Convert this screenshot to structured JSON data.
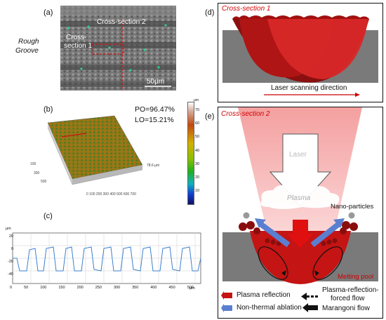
{
  "panel_a": {
    "label": "(a)",
    "side_label_1": "Rough",
    "side_label_2": "Groove",
    "cross_section_2": "Cross-section 2",
    "cross_section_1_line1": "Cross-",
    "cross_section_1_line2": "section 1",
    "scale_bar": "50μm"
  },
  "panel_b": {
    "label": "(b)",
    "po": "PO=96.47%",
    "lo": "LO=15.21%",
    "colorbar_unit": "μm",
    "colorbar_ticks": [
      "70",
      "60",
      "50",
      "40",
      "30",
      "20",
      "10",
      "0"
    ],
    "surface_annotation": "78.6 μm"
  },
  "panel_c": {
    "label": "(c)",
    "y_unit": "μm",
    "x_unit": "μm",
    "y_ticks": [
      "20",
      "0",
      "-20",
      "-40"
    ],
    "x_ticks": [
      "0",
      "50",
      "100",
      "150",
      "200",
      "250",
      "300",
      "350",
      "400",
      "450",
      "500"
    ]
  },
  "panel_d": {
    "label": "(d)",
    "title": "Cross-section 1",
    "direction": "Laser scanning direction"
  },
  "panel_e": {
    "label": "(e)",
    "title": "Cross-section 2",
    "laser": "Laser",
    "plasma": "Plasma",
    "nano": "Nano-particles",
    "melting_pool": "Melting pool",
    "legend_plasma_reflection": "Plasma reflection",
    "legend_non_thermal": "Non-thermal ablation",
    "legend_forced_flow_1": "Plasma-reflection-",
    "legend_forced_flow_2": "forced flow",
    "legend_marangoni": "Marangoni flow"
  },
  "colors": {
    "laser_red": "#cc0000",
    "ablation_blue": "#5b7fd0",
    "substrate_gray": "#7a7a7a",
    "pool_red": "#c41414"
  }
}
